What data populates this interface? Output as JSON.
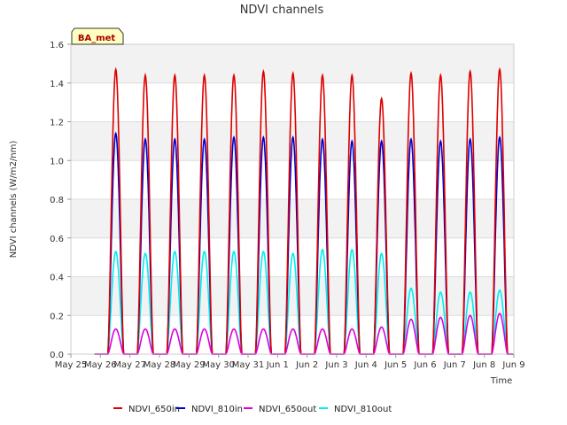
{
  "chart_data": {
    "type": "line",
    "title": "NDVI channels",
    "xlabel": "Time",
    "ylabel": "NDVI channels (W/m2/nm)",
    "badge": "BA_met",
    "ylim": [
      0,
      1.6
    ],
    "yticks": [
      0.0,
      0.2,
      0.4,
      0.6,
      0.8,
      1.0,
      1.2,
      1.4,
      1.6
    ],
    "ytick_labels": [
      "0.0",
      "0.2",
      "0.4",
      "0.6",
      "0.8",
      "1.0",
      "1.2",
      "1.4",
      "1.6"
    ],
    "x_ticks": [
      "May 25",
      "May 26",
      "May 27",
      "May 28",
      "May 29",
      "May 30",
      "May 31",
      "Jun 1",
      "Jun 2",
      "Jun 3",
      "Jun 4",
      "Jun 5",
      "Jun 6",
      "Jun 7",
      "Jun 8",
      "Jun 9"
    ],
    "xlim_days": [
      0,
      15
    ],
    "grid": true,
    "legend_position": "bottom",
    "days": [
      "May 26",
      "May 27",
      "May 28",
      "May 29",
      "May 30",
      "May 31",
      "Jun 1",
      "Jun 2",
      "Jun 3",
      "Jun 4",
      "Jun 5",
      "Jun 6",
      "Jun 7",
      "Jun 8"
    ],
    "series": [
      {
        "name": "NDVI_650in",
        "color": "#dd0000",
        "daily_peaks": [
          1.47,
          1.44,
          1.44,
          1.44,
          1.44,
          1.46,
          1.45,
          1.44,
          1.44,
          1.32,
          1.45,
          1.44,
          1.46,
          1.47
        ]
      },
      {
        "name": "NDVI_810in",
        "color": "#0000cc",
        "daily_peaks": [
          1.14,
          1.11,
          1.11,
          1.11,
          1.12,
          1.12,
          1.12,
          1.11,
          1.1,
          1.1,
          1.11,
          1.1,
          1.11,
          1.12
        ]
      },
      {
        "name": "NDVI_650out",
        "color": "#dd00dd",
        "daily_peaks": [
          0.13,
          0.13,
          0.13,
          0.13,
          0.13,
          0.13,
          0.13,
          0.13,
          0.13,
          0.14,
          0.18,
          0.19,
          0.2,
          0.21
        ]
      },
      {
        "name": "NDVI_810out",
        "color": "#00eeee",
        "daily_peaks": [
          0.53,
          0.52,
          0.53,
          0.53,
          0.53,
          0.53,
          0.52,
          0.54,
          0.54,
          0.52,
          0.34,
          0.32,
          0.32,
          0.33
        ]
      }
    ]
  }
}
